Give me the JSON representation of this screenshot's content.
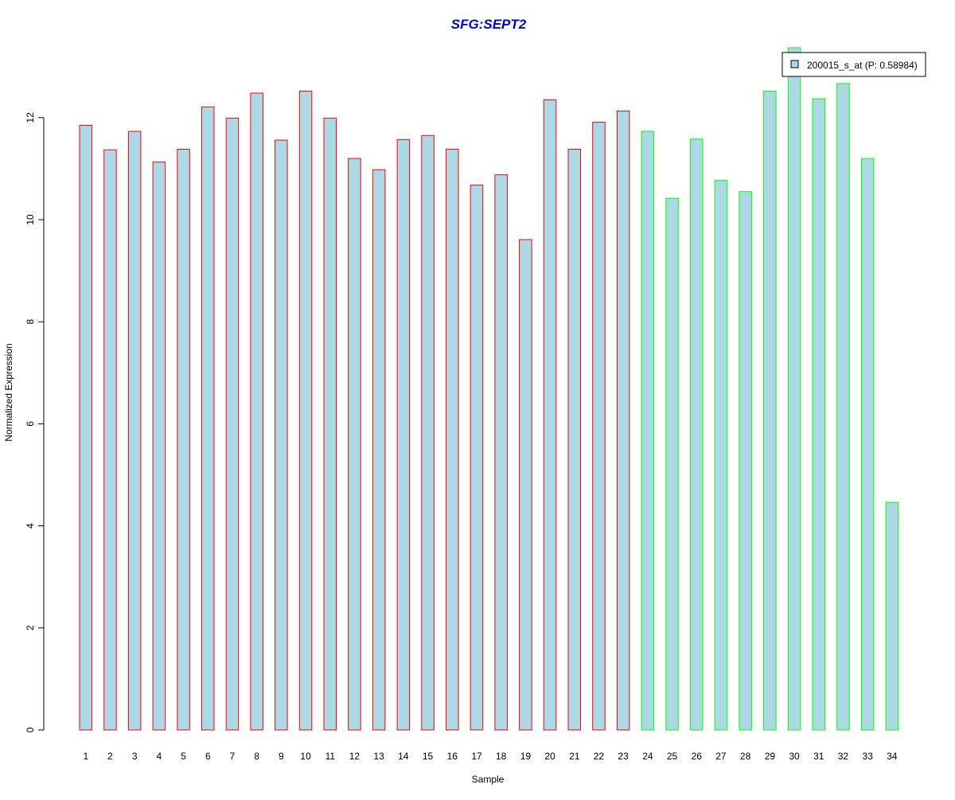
{
  "colors": {
    "title": "#0000cc",
    "bar_fill": "#add8e6",
    "group_a_border": "#ff0000",
    "group_b_border": "#00ff00",
    "axis": "#000000"
  },
  "chart_data": {
    "type": "bar",
    "title": "SFG:SEPT2",
    "xlabel": "Sample",
    "ylabel": "Normalized Expression",
    "ylim": [
      0,
      13.4
    ],
    "yticks": [
      0,
      2,
      4,
      6,
      8,
      10,
      12
    ],
    "grid": false,
    "legend_position": "top-right",
    "categories": [
      "1",
      "2",
      "3",
      "4",
      "5",
      "6",
      "7",
      "8",
      "9",
      "10",
      "11",
      "12",
      "13",
      "14",
      "15",
      "16",
      "17",
      "18",
      "19",
      "20",
      "21",
      "22",
      "23",
      "24",
      "25",
      "26",
      "27",
      "28",
      "29",
      "30",
      "31",
      "32",
      "33",
      "34"
    ],
    "series": [
      {
        "name": "200015_s_at (P: 0.58984)",
        "values": [
          11.85,
          11.37,
          11.73,
          11.13,
          11.38,
          12.21,
          11.99,
          12.48,
          11.56,
          12.52,
          11.99,
          11.2,
          10.98,
          11.57,
          11.65,
          11.38,
          10.68,
          10.88,
          9.61,
          12.35,
          11.38,
          11.91,
          12.13,
          11.73,
          10.42,
          11.58,
          10.77,
          10.55,
          12.52,
          13.37,
          12.37,
          12.67,
          11.2,
          4.46
        ],
        "groups": [
          "a",
          "a",
          "a",
          "a",
          "a",
          "a",
          "a",
          "a",
          "a",
          "a",
          "a",
          "a",
          "a",
          "a",
          "a",
          "a",
          "a",
          "a",
          "a",
          "a",
          "a",
          "a",
          "a",
          "b",
          "b",
          "b",
          "b",
          "b",
          "b",
          "b",
          "b",
          "b",
          "b",
          "b"
        ]
      }
    ]
  }
}
